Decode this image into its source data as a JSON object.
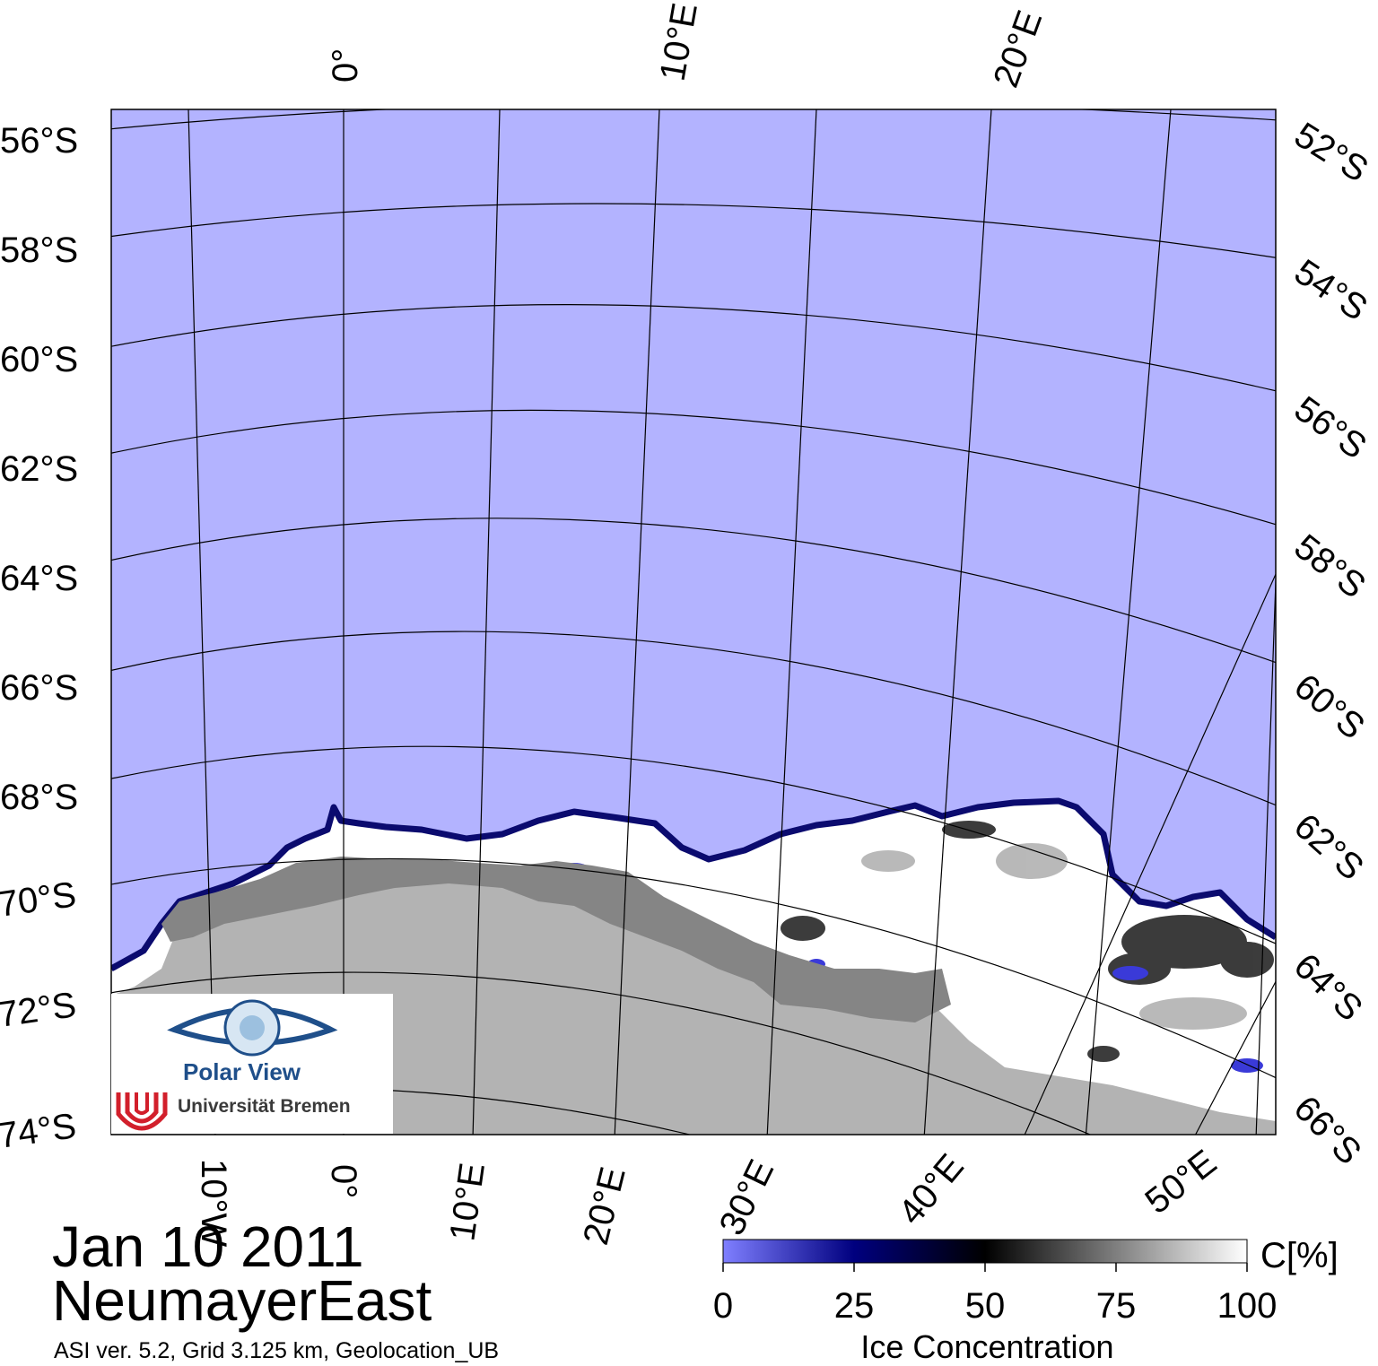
{
  "header": {
    "date": "Jan 10 2011",
    "region": "NeumayerEast",
    "info": "ASI ver. 5.2,  Grid 3.125 km, Geolocation_UB"
  },
  "graticule": {
    "left_lat_labels": [
      "56°S",
      "58°S",
      "60°S",
      "62°S",
      "64°S",
      "66°S",
      "68°S",
      "70°S",
      "72°S",
      "74°S"
    ],
    "right_lat_labels": [
      "52°S",
      "54°S",
      "56°S",
      "58°S",
      "60°S",
      "62°S",
      "64°S",
      "66°S"
    ],
    "top_lon_labels": [
      "0°",
      "10°E",
      "20°E"
    ],
    "bottom_lon_labels": [
      "10°W",
      "0°",
      "10°E",
      "20°E",
      "30°E",
      "40°E",
      "50°E"
    ]
  },
  "colorbar": {
    "title": "Ice Concentration",
    "unit": "C[%]",
    "ticks": [
      "0",
      "25",
      "50",
      "75",
      "100"
    ],
    "stops": [
      "#7f7fff",
      "#00007f",
      "#000000",
      "#7f7f7f",
      "#ffffff"
    ]
  },
  "logo": {
    "name": "Polar View",
    "institution": "Universität Bremen"
  },
  "colors": {
    "open_water": "#b3b3ff",
    "land": "#b3b3b3",
    "ice_shelf": "#858585",
    "sea_ice": "#ffffff"
  }
}
